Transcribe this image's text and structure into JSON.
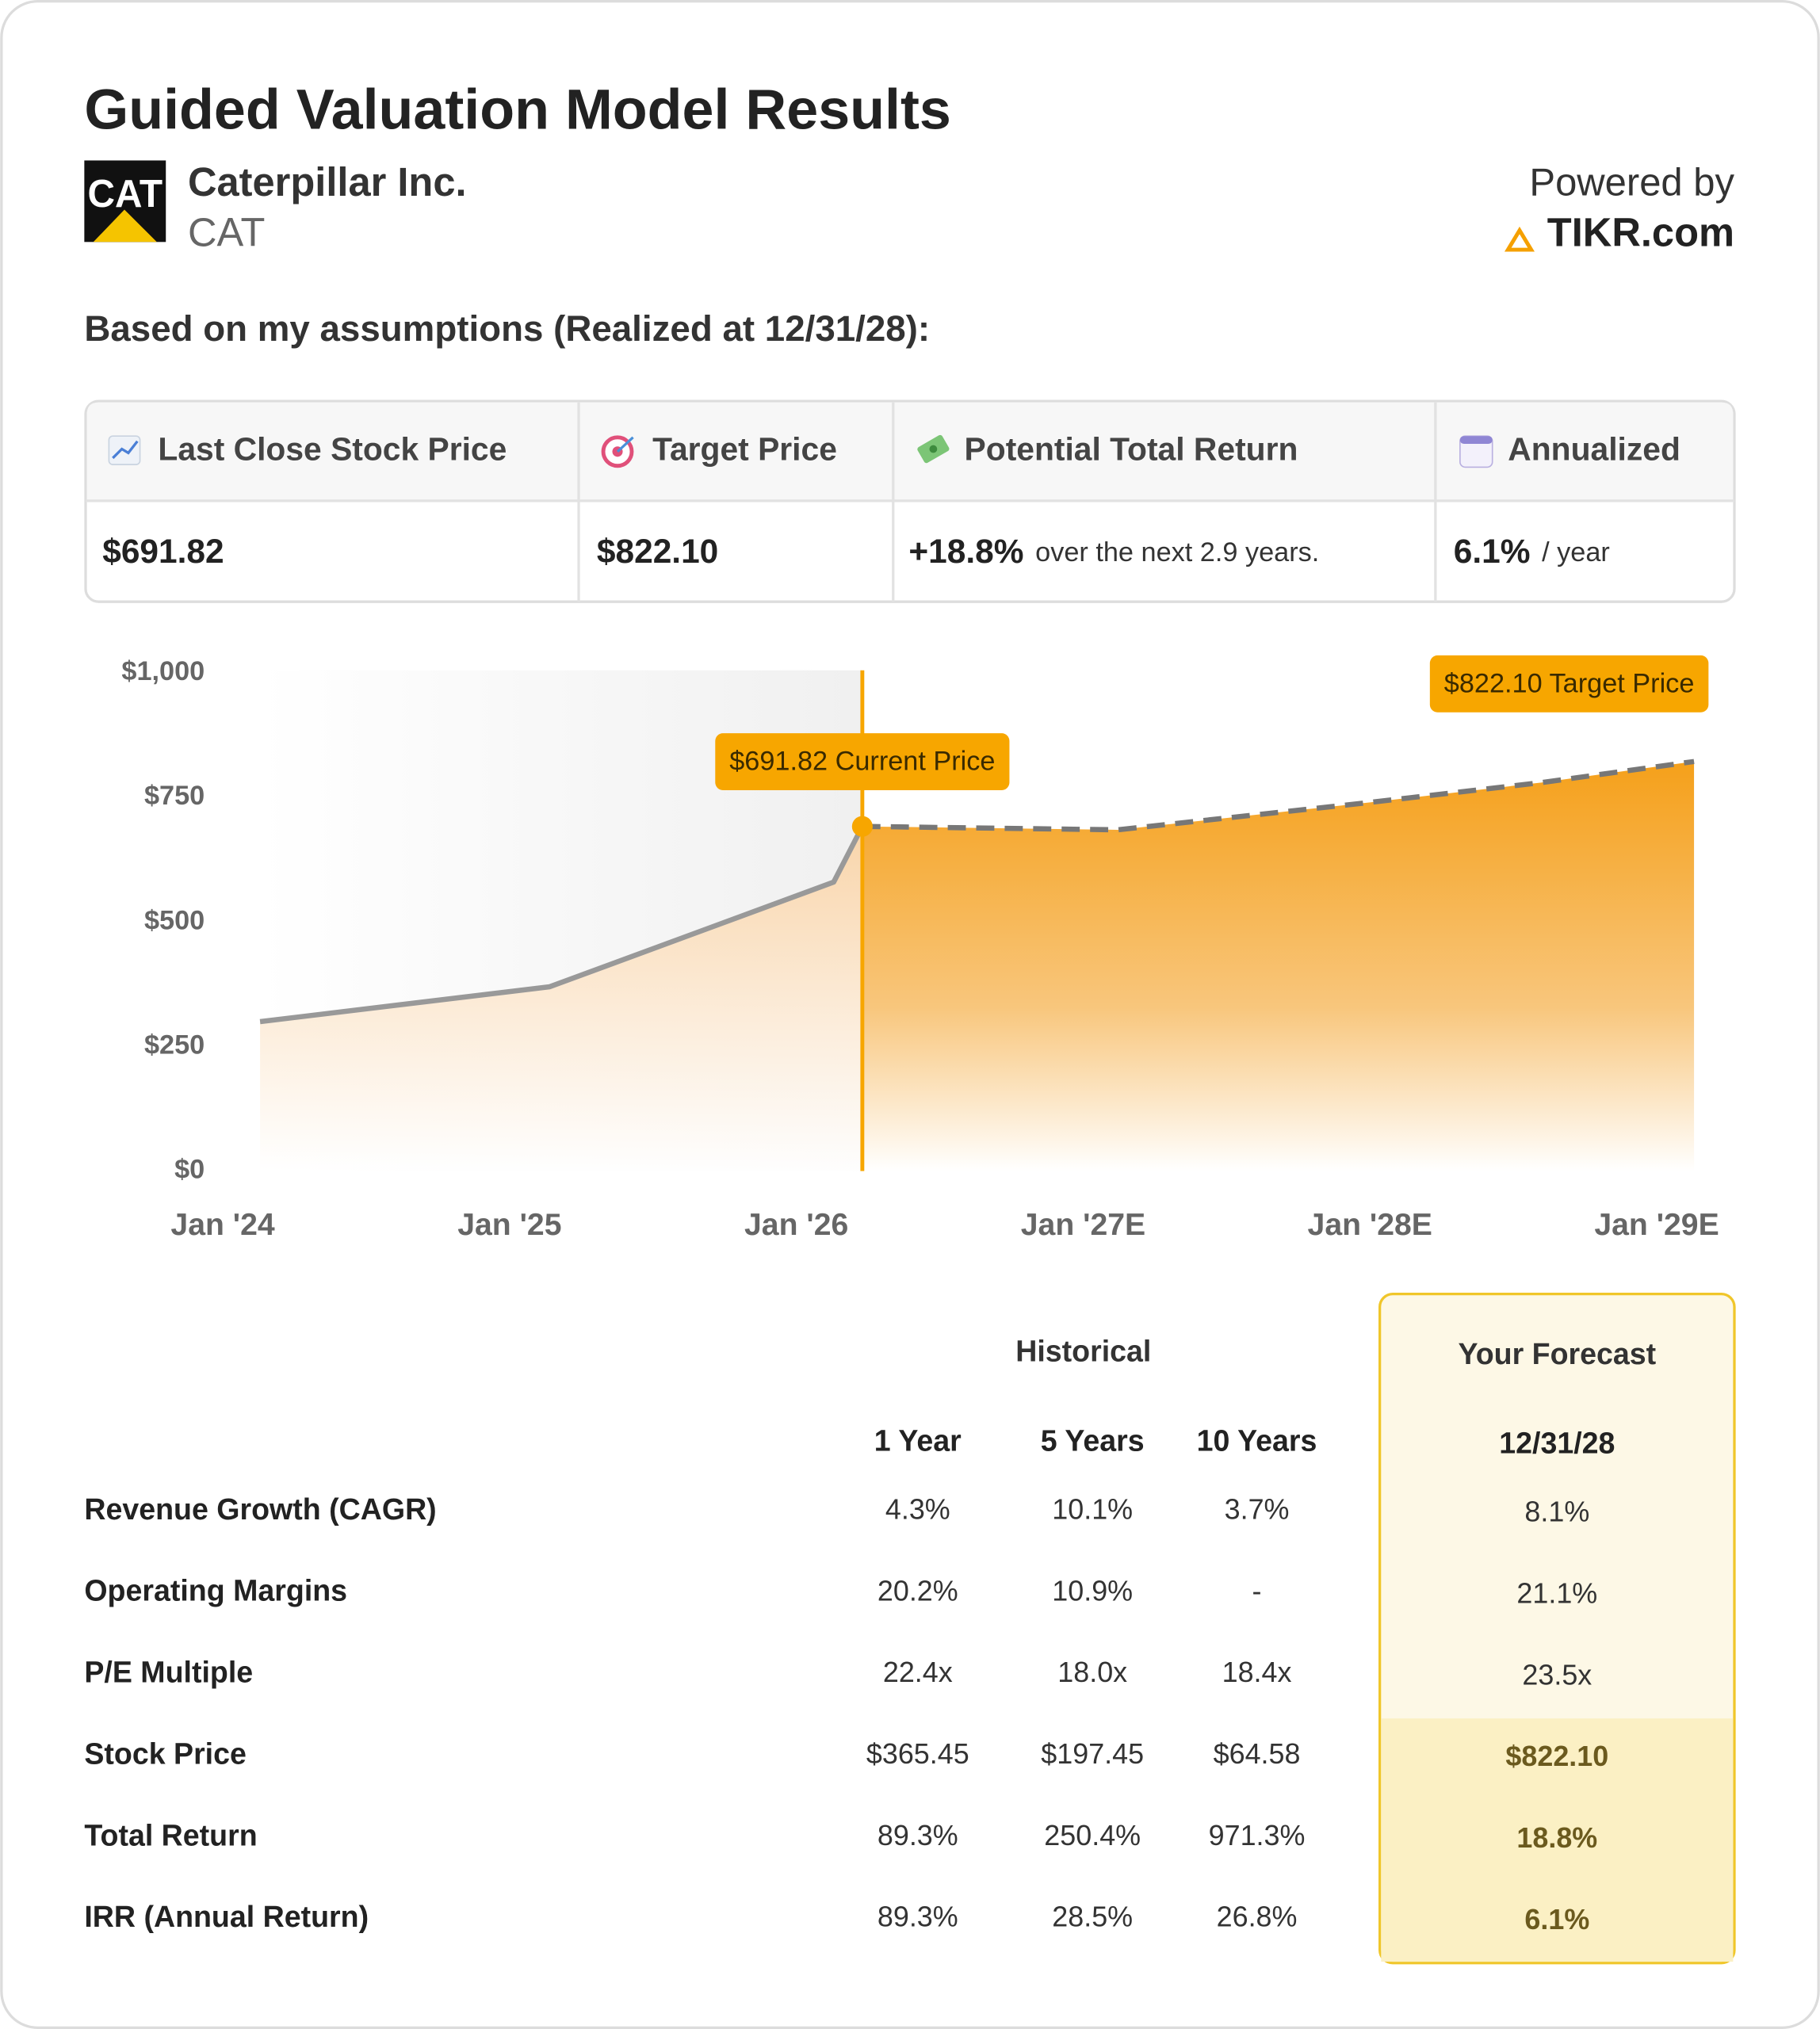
{
  "header": {
    "title": "Guided Valuation Model Results",
    "company": "Caterpillar Inc.",
    "ticker": "CAT",
    "powered_by": "Powered by",
    "provider": "TIKR.com"
  },
  "subtitle": "Based on my assumptions (Realized at 12/31/28):",
  "summary": [
    {
      "label": "Last Close Stock Price",
      "value": "$691.82"
    },
    {
      "label": "Target Price",
      "value": "$822.10"
    },
    {
      "label": "Potential Total Return",
      "value": "+18.8%",
      "note": "over the next 2.9 years."
    },
    {
      "label": "Annualized",
      "value": "6.1%",
      "note": "/ year"
    }
  ],
  "chart_data": {
    "type": "area",
    "xlim": [
      2024,
      2029
    ],
    "xticks": [
      {
        "value": 2024,
        "label": "Jan '24"
      },
      {
        "value": 2025,
        "label": "Jan '25"
      },
      {
        "value": 2026,
        "label": "Jan '26"
      },
      {
        "value": 2027,
        "label": "Jan '27E"
      },
      {
        "value": 2028,
        "label": "Jan '28E"
      },
      {
        "value": 2029,
        "label": "Jan '29E"
      }
    ],
    "ylim": [
      0,
      1000
    ],
    "yticks": [
      {
        "value": 0,
        "label": "$0"
      },
      {
        "value": 250,
        "label": "$250"
      },
      {
        "value": 500,
        "label": "$500"
      },
      {
        "value": 750,
        "label": "$750"
      },
      {
        "value": 1000,
        "label": "$1,000"
      }
    ],
    "series": [
      {
        "x": [
          2024.13,
          2025.14,
          2026.13,
          2026.23
        ],
        "values": [
          300,
          370,
          580,
          691.82
        ],
        "color": "#f9d3a6",
        "line_color": "#999999",
        "dashed": false
      },
      {
        "x": [
          2026.23,
          2027.12,
          2028.0,
          2028.6,
          2029.13
        ],
        "values": [
          691.82,
          685,
          740,
          780,
          822.1
        ],
        "color": "#f5a01a",
        "line_color": "#777777",
        "dashed": true
      }
    ],
    "annotations": [
      {
        "text": "$691.82 Current Price",
        "x": 2026.23,
        "y": 691.82
      },
      {
        "text": "$822.10 Target Price",
        "x": 2029.13,
        "y": 822.1
      }
    ],
    "annotation_color": "#f7a600"
  },
  "table": {
    "group_headers": [
      "Historical",
      "Your Forecast"
    ],
    "columns": [
      "1 Year",
      "5 Years",
      "10 Years",
      "12/31/28"
    ],
    "rows": [
      {
        "label": "Revenue Growth (CAGR)",
        "values": [
          "4.3%",
          "10.1%",
          "3.7%",
          "8.1%"
        ]
      },
      {
        "label": "Operating Margins",
        "values": [
          "20.2%",
          "10.9%",
          "-",
          "21.1%"
        ]
      },
      {
        "label": "P/E Multiple",
        "values": [
          "22.4x",
          "18.0x",
          "18.4x",
          "23.5x"
        ]
      },
      {
        "label": "Stock Price",
        "values": [
          "$365.45",
          "$197.45",
          "$64.58",
          "$822.10"
        ]
      },
      {
        "label": "Total Return",
        "values": [
          "89.3%",
          "250.4%",
          "971.3%",
          "18.8%"
        ]
      },
      {
        "label": "IRR (Annual Return)",
        "values": [
          "89.3%",
          "28.5%",
          "26.8%",
          "6.1%"
        ]
      }
    ]
  }
}
